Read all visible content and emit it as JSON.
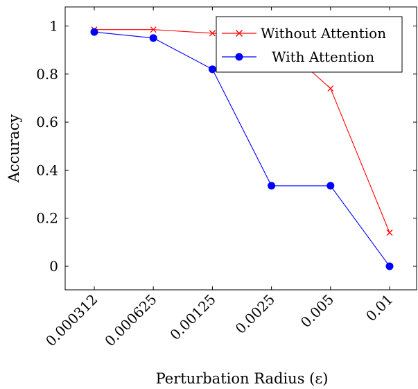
{
  "chart_data": {
    "type": "line",
    "title": "",
    "xlabel": "Perturbation Radius (ε)",
    "ylabel": "Accuracy",
    "categories": [
      "0.000312",
      "0.000625",
      "0.00125",
      "0.0025",
      "0.005",
      "0.01"
    ],
    "ylim": [
      -0.1,
      1.08
    ],
    "yticks": [
      0,
      0.2,
      0.4,
      0.6,
      0.8,
      1
    ],
    "ytick_labels": [
      "0",
      "0.2",
      "0.4",
      "0.6",
      "0.8",
      "1"
    ],
    "grid": false,
    "legend_position": "top-right",
    "series": [
      {
        "name": "Without Attention",
        "color": "#ff0000",
        "marker": "x",
        "values": [
          0.985,
          0.985,
          0.97,
          0.96,
          0.74,
          0.14
        ]
      },
      {
        "name": "With Attention",
        "color": "#0000ff",
        "marker": "filled-circle",
        "values": [
          0.975,
          0.95,
          0.82,
          0.335,
          0.335,
          0.0
        ]
      }
    ]
  }
}
